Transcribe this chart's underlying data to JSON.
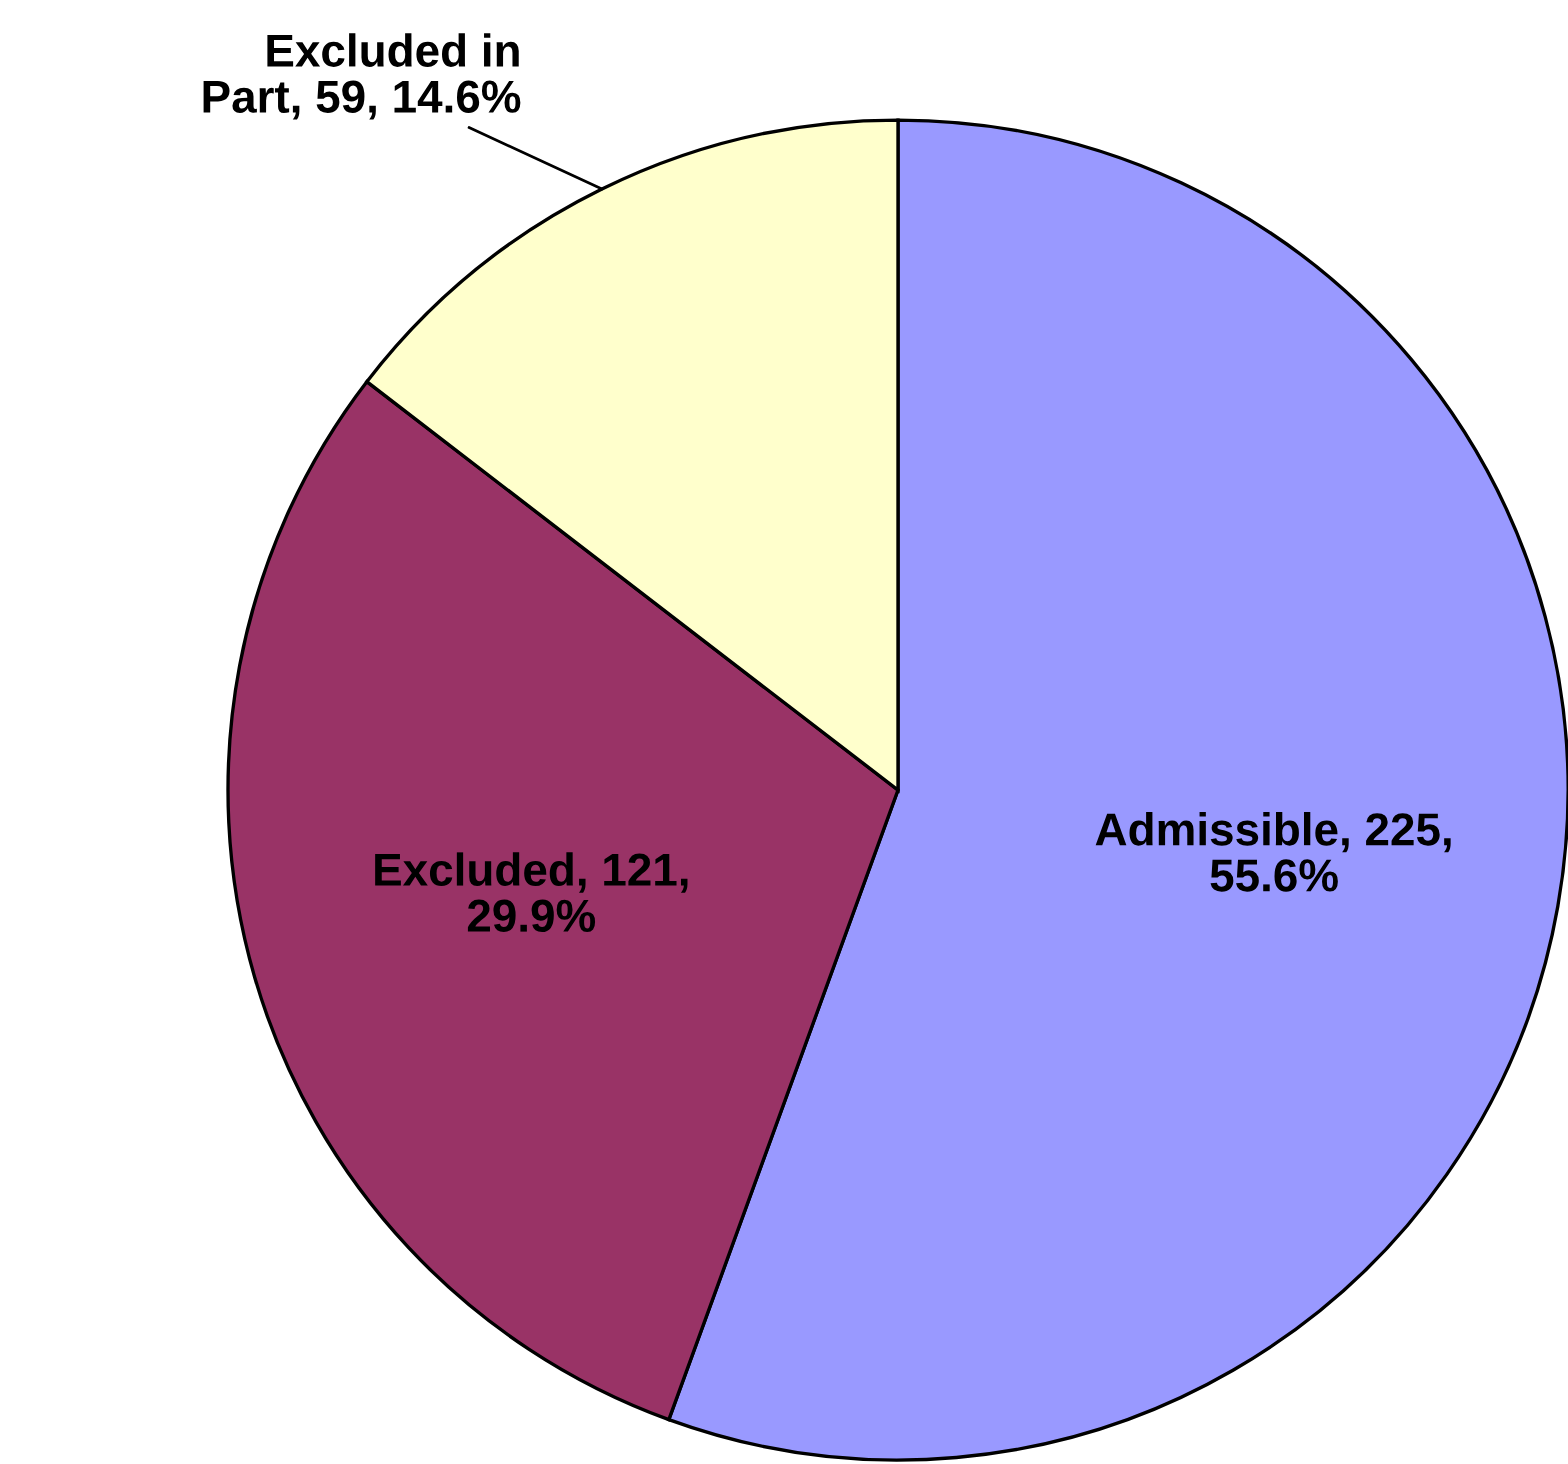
{
  "chart_data": {
    "type": "pie",
    "categories": [
      "Admissible",
      "Excluded",
      "Excluded in Part"
    ],
    "values": [
      225,
      121,
      59
    ],
    "value_labels": [
      "225, 55.6%",
      "121, 29.9%",
      "59, 14.6%"
    ],
    "colors": [
      "#9999ff",
      "#993366",
      "#ffffcc"
    ],
    "legend": false
  }
}
